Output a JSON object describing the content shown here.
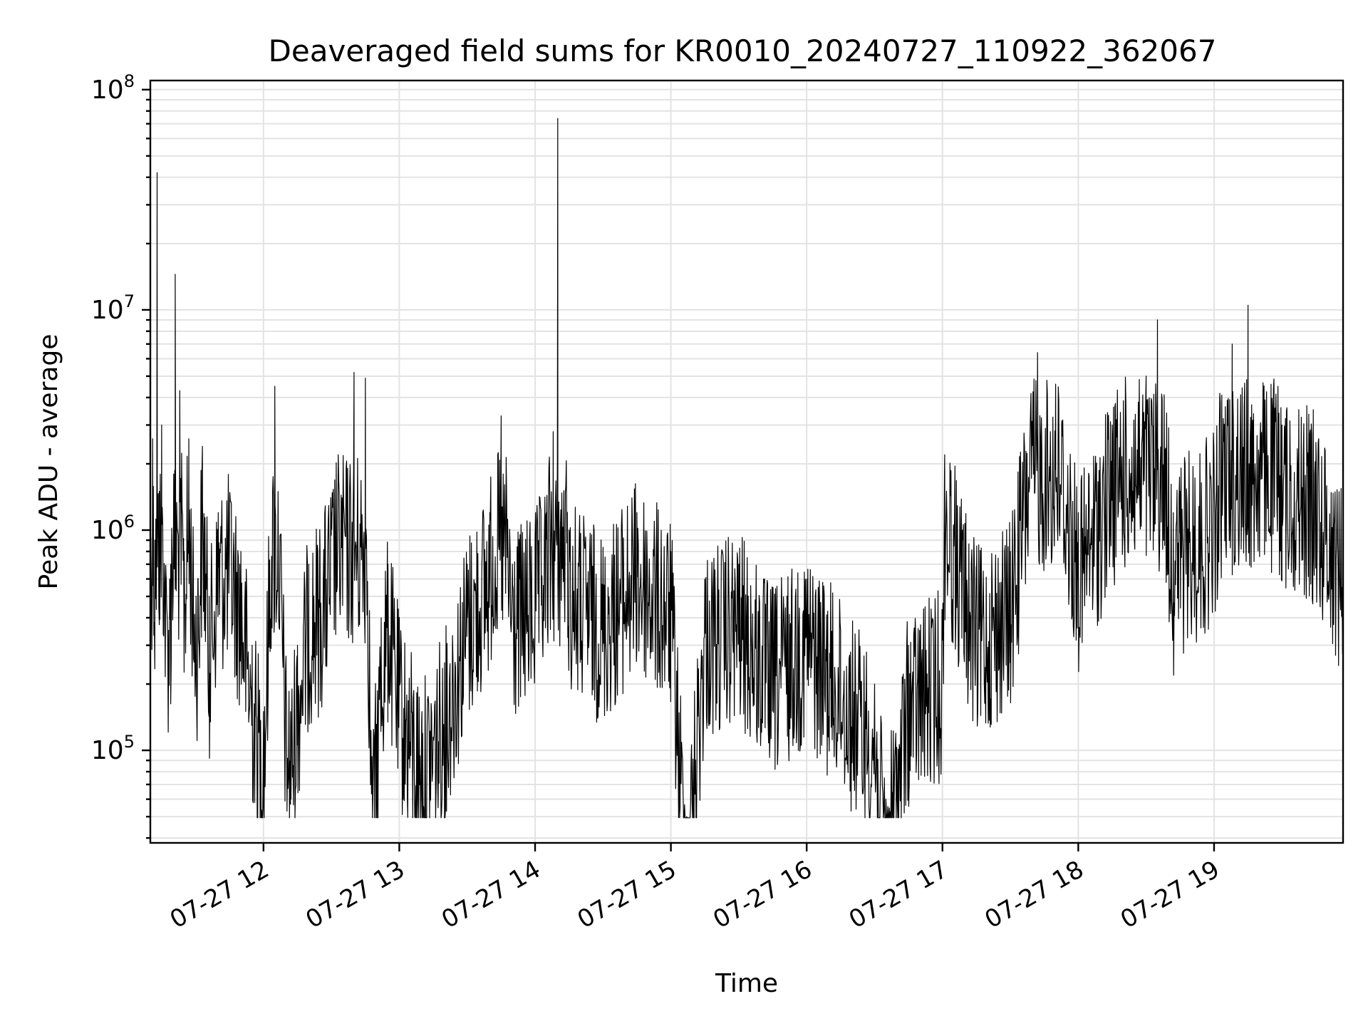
{
  "chart_data": {
    "type": "line",
    "title": "Deaveraged field sums for KR0010_20240727_110922_362067",
    "xlabel": "Time",
    "ylabel": "Peak ADU - average",
    "yscale": "log",
    "xlim": [
      "2024-07-27 11:10",
      "2024-07-27 19:57"
    ],
    "ylim": [
      38000,
      110000000
    ],
    "grid": true,
    "xtick_labels": [
      {
        "t": "2024-07-27 12:00",
        "label": "07-27 12"
      },
      {
        "t": "2024-07-27 13:00",
        "label": "07-27 13"
      },
      {
        "t": "2024-07-27 14:00",
        "label": "07-27 14"
      },
      {
        "t": "2024-07-27 15:00",
        "label": "07-27 15"
      },
      {
        "t": "2024-07-27 16:00",
        "label": "07-27 16"
      },
      {
        "t": "2024-07-27 17:00",
        "label": "07-27 17"
      },
      {
        "t": "2024-07-27 18:00",
        "label": "07-27 18"
      },
      {
        "t": "2024-07-27 19:00",
        "label": "07-27 19"
      }
    ],
    "ytick_labels": [
      {
        "value": 100000,
        "base": "10",
        "exp": "5"
      },
      {
        "value": 1000000,
        "base": "10",
        "exp": "6"
      },
      {
        "value": 10000000,
        "base": "10",
        "exp": "7"
      },
      {
        "value": 100000000,
        "base": "10",
        "exp": "8"
      }
    ],
    "series": [
      {
        "color": "#000000",
        "x": [
          "2024-07-27 11:10",
          "2024-07-27 11:11",
          "2024-07-27 11:12",
          "2024-07-27 11:13",
          "2024-07-27 11:14",
          "2024-07-27 11:15",
          "2024-07-27 11:17",
          "2024-07-27 11:19",
          "2024-07-27 11:21",
          "2024-07-27 11:23",
          "2024-07-27 11:25",
          "2024-07-27 11:27",
          "2024-07-27 11:29",
          "2024-07-27 11:31",
          "2024-07-27 11:33",
          "2024-07-27 11:36",
          "2024-07-27 11:40",
          "2024-07-27 11:45",
          "2024-07-27 11:50",
          "2024-07-27 11:55",
          "2024-07-27 12:00",
          "2024-07-27 12:05",
          "2024-07-27 12:10",
          "2024-07-27 12:12",
          "2024-07-27 12:15",
          "2024-07-27 12:20",
          "2024-07-27 12:25",
          "2024-07-27 12:30",
          "2024-07-27 12:40",
          "2024-07-27 12:45",
          "2024-07-27 12:48",
          "2024-07-27 12:52",
          "2024-07-27 12:55",
          "2024-07-27 13:00",
          "2024-07-27 13:10",
          "2024-07-27 13:20",
          "2024-07-27 13:30",
          "2024-07-27 13:40",
          "2024-07-27 13:45",
          "2024-07-27 13:50",
          "2024-07-27 14:00",
          "2024-07-27 14:05",
          "2024-07-27 14:08",
          "2024-07-27 14:10",
          "2024-07-27 14:15",
          "2024-07-27 14:30",
          "2024-07-27 14:45",
          "2024-07-27 15:00",
          "2024-07-27 15:07",
          "2024-07-27 15:15",
          "2024-07-27 15:30",
          "2024-07-27 15:45",
          "2024-07-27 16:00",
          "2024-07-27 16:15",
          "2024-07-27 16:30",
          "2024-07-27 16:35",
          "2024-07-27 16:45",
          "2024-07-27 17:00",
          "2024-07-27 17:01",
          "2024-07-27 17:15",
          "2024-07-27 17:30",
          "2024-07-27 17:42",
          "2024-07-27 17:50",
          "2024-07-27 18:00",
          "2024-07-27 18:15",
          "2024-07-27 18:30",
          "2024-07-27 18:35",
          "2024-07-27 18:42",
          "2024-07-27 18:45",
          "2024-07-27 19:00",
          "2024-07-27 19:08",
          "2024-07-27 19:15",
          "2024-07-27 19:30",
          "2024-07-27 19:45",
          "2024-07-27 19:57"
        ],
        "values": [
          1000000,
          2600000,
          900000,
          42000000,
          1500000,
          3000000,
          600000,
          700000,
          14500000,
          4300000,
          800000,
          2600000,
          700000,
          600000,
          2400000,
          500000,
          1200000,
          1300000,
          800000,
          300000,
          150000,
          4500000,
          200000,
          150000,
          300000,
          700000,
          800000,
          1200000,
          5200000,
          4900000,
          80000,
          400000,
          700000,
          300000,
          150000,
          250000,
          700000,
          1200000,
          3300000,
          700000,
          900000,
          1200000,
          2800000,
          74000000,
          1000000,
          700000,
          1200000,
          800000,
          50000,
          600000,
          700000,
          400000,
          600000,
          350000,
          200000,
          60000,
          300000,
          400000,
          2200000,
          600000,
          800000,
          6400000,
          4600000,
          1200000,
          3000000,
          5000000,
          9000000,
          1200000,
          1500000,
          2000000,
          7000000,
          10500000,
          3000000,
          2500000,
          1200000
        ]
      }
    ]
  }
}
